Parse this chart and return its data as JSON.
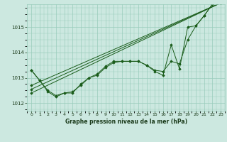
{
  "title": "Graphe pression niveau de la mer (hPa)",
  "background_color": "#cce8e0",
  "grid_color": "#99ccbb",
  "line_color": "#1a5c1a",
  "text_color": "#1a3a1a",
  "xlim": [
    -0.5,
    23.5
  ],
  "ylim": [
    1011.7,
    1015.9
  ],
  "yticks": [
    1012,
    1013,
    1014,
    1015
  ],
  "xticks": [
    0,
    1,
    2,
    3,
    4,
    5,
    6,
    7,
    8,
    9,
    10,
    11,
    12,
    13,
    14,
    15,
    16,
    17,
    18,
    19,
    20,
    21,
    22,
    23
  ],
  "series": [
    {
      "x": [
        0,
        1,
        2,
        3,
        4,
        5,
        6,
        7,
        8,
        9,
        10,
        11,
        12,
        13,
        14,
        15,
        16,
        17,
        18,
        19,
        20,
        21,
        22,
        23
      ],
      "y": [
        1013.3,
        1012.9,
        1012.45,
        1012.25,
        1012.4,
        1012.45,
        1012.7,
        1013.0,
        1013.1,
        1013.4,
        1013.6,
        1013.65,
        1013.65,
        1013.65,
        1013.5,
        1013.25,
        1013.1,
        1014.3,
        1013.35,
        1015.0,
        1015.05,
        1015.45,
        1015.9,
        1015.95
      ]
    },
    {
      "x": [
        0,
        1,
        2,
        3,
        4,
        5,
        6,
        7,
        8,
        9,
        10,
        11,
        12,
        13,
        14,
        15,
        16,
        17,
        18,
        19,
        20,
        21,
        22,
        23
      ],
      "y": [
        1013.3,
        1012.9,
        1012.5,
        1012.3,
        1012.4,
        1012.4,
        1012.75,
        1013.0,
        1013.15,
        1013.45,
        1013.65,
        1013.65,
        1013.65,
        1013.65,
        1013.5,
        1013.3,
        1013.25,
        1013.65,
        1013.55,
        1014.5,
        1015.05,
        1015.45,
        1015.9,
        1015.95
      ]
    },
    {
      "x": [
        0,
        23
      ],
      "y": [
        1012.7,
        1015.95
      ]
    },
    {
      "x": [
        0,
        23
      ],
      "y": [
        1012.55,
        1015.95
      ]
    },
    {
      "x": [
        0,
        23
      ],
      "y": [
        1012.4,
        1015.95
      ]
    }
  ]
}
